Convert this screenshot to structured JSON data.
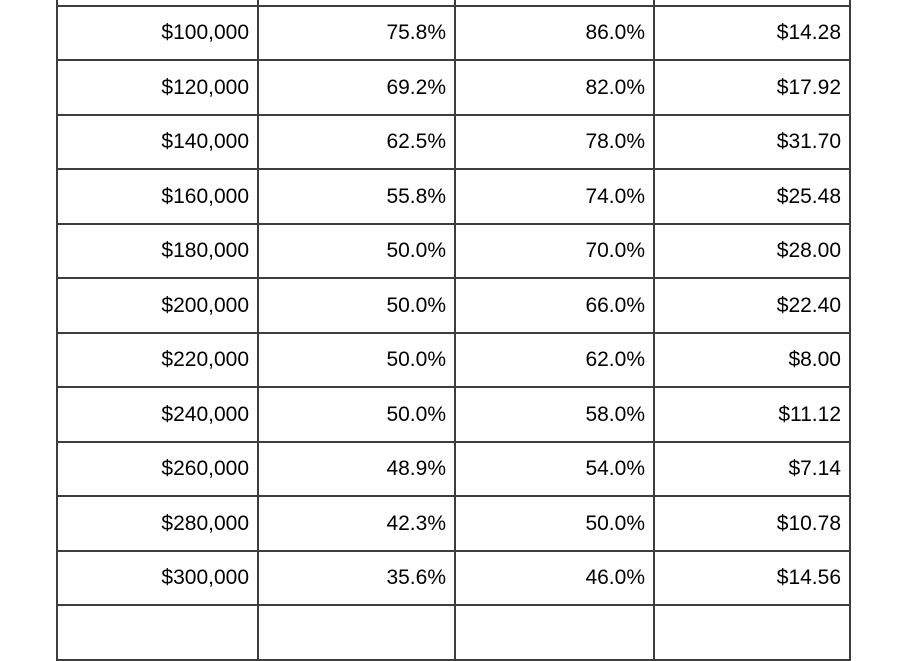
{
  "colors": {
    "background": "#ffffff",
    "border": "#3d3d3d",
    "text": "#000000"
  },
  "table": {
    "rows": [
      [
        "$100,000",
        "75.8%",
        "86.0%",
        "$14.28"
      ],
      [
        "$120,000",
        "69.2%",
        "82.0%",
        "$17.92"
      ],
      [
        "$140,000",
        "62.5%",
        "78.0%",
        "$31.70"
      ],
      [
        "$160,000",
        "55.8%",
        "74.0%",
        "$25.48"
      ],
      [
        "$180,000",
        "50.0%",
        "70.0%",
        "$28.00"
      ],
      [
        "$200,000",
        "50.0%",
        "66.0%",
        "$22.40"
      ],
      [
        "$220,000",
        "50.0%",
        "62.0%",
        "$8.00"
      ],
      [
        "$240,000",
        "50.0%",
        "58.0%",
        "$11.12"
      ],
      [
        "$260,000",
        "48.9%",
        "54.0%",
        "$7.14"
      ],
      [
        "$280,000",
        "42.3%",
        "50.0%",
        "$10.78"
      ],
      [
        "$300,000",
        "35.6%",
        "46.0%",
        "$14.56"
      ]
    ]
  }
}
